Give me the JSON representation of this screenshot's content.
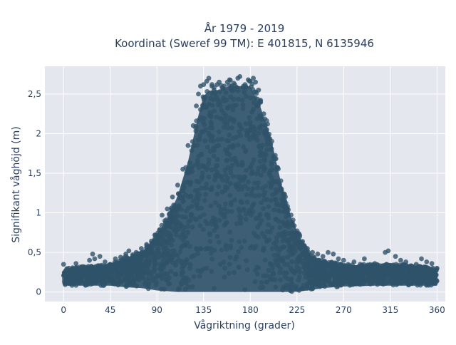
{
  "chart_data": {
    "type": "scatter",
    "title_line1": "År 1979 - 2019",
    "title_line2": "Koordinat (Sweref 99 TM): E 401815, N 6135946",
    "xlabel": "Vågriktning (grader)",
    "ylabel": "Signifikant våghöjd (m)",
    "xlim": [
      -18,
      368
    ],
    "ylim": [
      -0.12,
      2.85
    ],
    "xticks": [
      {
        "value": 0,
        "label": "0"
      },
      {
        "value": 45,
        "label": "45"
      },
      {
        "value": 90,
        "label": "90"
      },
      {
        "value": 135,
        "label": "135"
      },
      {
        "value": 180,
        "label": "180"
      },
      {
        "value": 225,
        "label": "225"
      },
      {
        "value": 270,
        "label": "270"
      },
      {
        "value": 315,
        "label": "315"
      },
      {
        "value": 360,
        "label": "360"
      }
    ],
    "yticks": [
      {
        "value": 0,
        "label": "0"
      },
      {
        "value": 0.5,
        "label": "0,5"
      },
      {
        "value": 1,
        "label": "1"
      },
      {
        "value": 1.5,
        "label": "1,5"
      },
      {
        "value": 2,
        "label": "2"
      },
      {
        "value": 2.5,
        "label": "2,5"
      }
    ],
    "grid": true,
    "marker_color": "#2f5369",
    "plot_bg": "#e5e7ee",
    "envelope": {
      "direction_deg": [
        0,
        45,
        60,
        75,
        90,
        100,
        110,
        120,
        130,
        135,
        140,
        150,
        160,
        170,
        180,
        190,
        200,
        210,
        220,
        230,
        240,
        250,
        270,
        300,
        330,
        360
      ],
      "max_height_m": [
        0.3,
        0.35,
        0.45,
        0.5,
        0.75,
        0.95,
        1.25,
        1.7,
        2.3,
        2.55,
        2.62,
        2.63,
        2.68,
        2.68,
        2.68,
        2.4,
        2.0,
        1.4,
        0.95,
        0.65,
        0.45,
        0.4,
        0.35,
        0.35,
        0.35,
        0.3
      ],
      "min_height_m": [
        0.08,
        0.08,
        0.06,
        0.05,
        0.02,
        0.01,
        0.0,
        0.0,
        0.0,
        0.0,
        0.0,
        0.0,
        0.0,
        0.0,
        0.0,
        0.0,
        0.0,
        0.0,
        0.0,
        0.01,
        0.03,
        0.05,
        0.07,
        0.08,
        0.08,
        0.08
      ]
    },
    "points": [
      [
        0,
        0.35
      ],
      [
        2,
        0.25
      ],
      [
        5,
        0.3
      ],
      [
        10,
        0.28
      ],
      [
        12,
        0.36
      ],
      [
        18,
        0.32
      ],
      [
        25,
        0.4
      ],
      [
        28,
        0.48
      ],
      [
        30,
        0.42
      ],
      [
        35,
        0.45
      ],
      [
        40,
        0.38
      ],
      [
        45,
        0.35
      ],
      [
        50,
        0.42
      ],
      [
        55,
        0.44
      ],
      [
        60,
        0.48
      ],
      [
        63,
        0.52
      ],
      [
        70,
        0.5
      ],
      [
        75,
        0.55
      ],
      [
        80,
        0.6
      ],
      [
        85,
        0.62
      ],
      [
        88,
        0.72
      ],
      [
        95,
        0.97
      ],
      [
        100,
        1.05
      ],
      [
        105,
        1.2
      ],
      [
        110,
        1.35
      ],
      [
        115,
        1.55
      ],
      [
        120,
        1.85
      ],
      [
        125,
        2.1
      ],
      [
        128,
        2.35
      ],
      [
        130,
        2.5
      ],
      [
        132,
        2.6
      ],
      [
        135,
        2.62
      ],
      [
        138,
        2.66
      ],
      [
        140,
        2.7
      ],
      [
        143,
        2.6
      ],
      [
        145,
        2.55
      ],
      [
        148,
        2.62
      ],
      [
        150,
        2.65
      ],
      [
        153,
        2.58
      ],
      [
        155,
        2.6
      ],
      [
        158,
        2.65
      ],
      [
        160,
        2.68
      ],
      [
        162,
        2.55
      ],
      [
        165,
        2.62
      ],
      [
        168,
        2.7
      ],
      [
        170,
        2.72
      ],
      [
        173,
        2.58
      ],
      [
        175,
        2.62
      ],
      [
        178,
        2.68
      ],
      [
        180,
        2.66
      ],
      [
        183,
        2.7
      ],
      [
        185,
        2.65
      ],
      [
        188,
        2.55
      ],
      [
        190,
        2.42
      ],
      [
        193,
        2.25
      ],
      [
        196,
        2.05
      ],
      [
        200,
        1.8
      ],
      [
        205,
        1.55
      ],
      [
        210,
        1.3
      ],
      [
        215,
        1.05
      ],
      [
        220,
        0.85
      ],
      [
        225,
        0.72
      ],
      [
        230,
        0.6
      ],
      [
        235,
        0.55
      ],
      [
        240,
        0.5
      ],
      [
        245,
        0.48
      ],
      [
        250,
        0.45
      ],
      [
        255,
        0.5
      ],
      [
        260,
        0.48
      ],
      [
        265,
        0.42
      ],
      [
        270,
        0.4
      ],
      [
        280,
        0.38
      ],
      [
        290,
        0.42
      ],
      [
        300,
        0.36
      ],
      [
        310,
        0.5
      ],
      [
        313,
        0.52
      ],
      [
        320,
        0.45
      ],
      [
        325,
        0.4
      ],
      [
        330,
        0.38
      ],
      [
        340,
        0.35
      ],
      [
        345,
        0.42
      ],
      [
        350,
        0.38
      ],
      [
        355,
        0.36
      ],
      [
        360,
        0.3
      ]
    ]
  }
}
